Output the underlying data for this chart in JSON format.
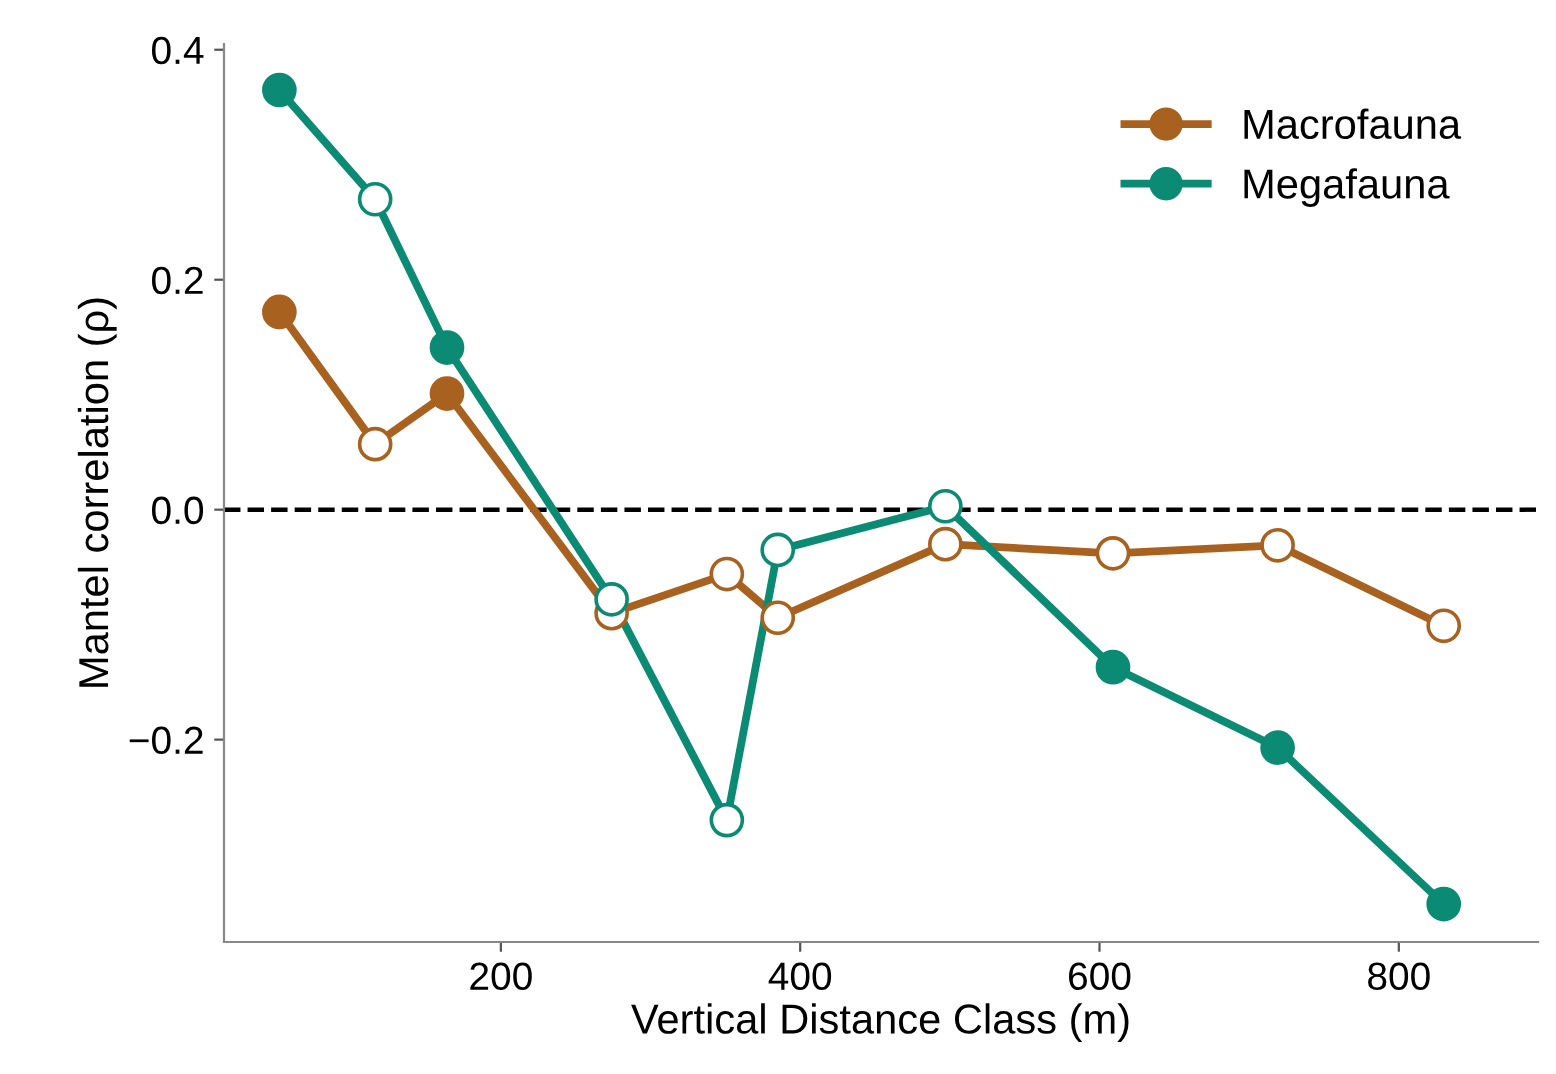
{
  "chart_data": {
    "type": "line",
    "xlabel": "Vertical Distance Class (m)",
    "ylabel": "Mantel correlation (ρ)",
    "xlim": [
      15,
      893
    ],
    "ylim": [
      -0.376,
      0.405
    ],
    "xticks": [
      200,
      400,
      600,
      800
    ],
    "yticks": [
      0.4,
      0.2,
      {
        "value": 0,
        "label": "0.0"
      },
      {
        "value": -0.2,
        "label": "−0.2"
      }
    ],
    "grid": false,
    "legend": "top right",
    "marker": "circle",
    "line_style": "solid",
    "ref_lines": [
      {
        "axis": "y",
        "value": 0,
        "color": "#000000",
        "line_style": "dashed"
      }
    ],
    "series": [
      {
        "name": "Macrofauna",
        "color": "#a8611f",
        "x": [
          52,
          116,
          164,
          274,
          351,
          385,
          497,
          609,
          719,
          830
        ],
        "values": [
          0.172,
          0.057,
          0.101,
          -0.09,
          -0.056,
          -0.094,
          -0.03,
          -0.038,
          -0.031,
          -0.101
        ],
        "colors": [
          "#a8611f",
          "#ffffff",
          "#a8611f",
          "#ffffff",
          "#ffffff",
          "#ffffff",
          "#ffffff",
          "#ffffff",
          "#ffffff",
          "#ffffff"
        ]
      },
      {
        "name": "Megafauna",
        "color": "#0b8a74",
        "x": [
          52,
          116,
          164,
          274,
          351,
          385,
          497,
          609,
          719,
          830
        ],
        "values": [
          0.365,
          0.27,
          0.141,
          -0.078,
          -0.27,
          -0.035,
          0.003,
          -0.137,
          -0.207,
          -0.343
        ],
        "colors": [
          "#0b8a74",
          "#ffffff",
          "#0b8a74",
          "#ffffff",
          "#ffffff",
          "#ffffff",
          "#ffffff",
          "#0b8a74",
          "#0b8a74",
          "#0b8a74"
        ]
      }
    ]
  }
}
